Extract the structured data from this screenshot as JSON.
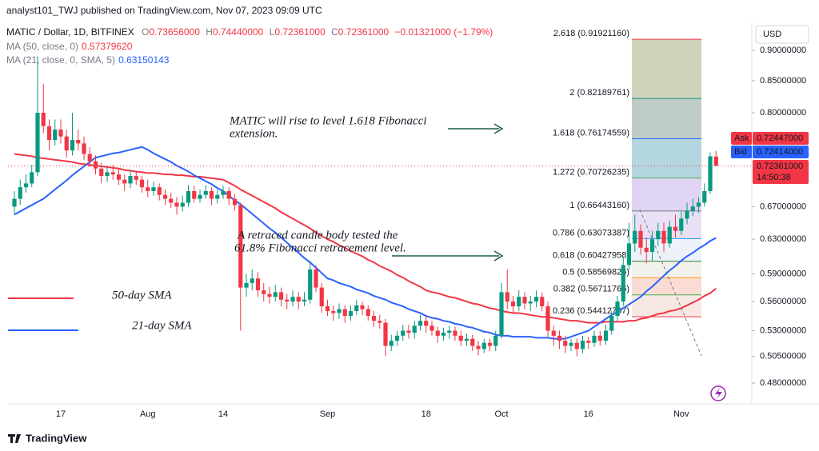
{
  "chart_data": {
    "type": "candlestick",
    "title": "analyst101_TWJ published on TradingView.com, Nov 07, 2023 09:09 UTC",
    "symbol": "MATIC / Dollar, 1D, BITFINEX",
    "ohlc_legend": [
      {
        "key": "O",
        "text": "0.73656000"
      },
      {
        "key": "H",
        "text": "0.74440000"
      },
      {
        "key": "L",
        "text": "0.72361000"
      },
      {
        "key": "C",
        "text": "0.72361000"
      }
    ],
    "change": "−0.01321000 (−1.79%)",
    "categories": [
      null,
      null,
      null,
      null,
      null,
      null,
      null,
      null,
      "17",
      null,
      null,
      null,
      null,
      null,
      null,
      null,
      null,
      null,
      null,
      null,
      null,
      null,
      null,
      "Aug",
      null,
      null,
      null,
      null,
      null,
      null,
      null,
      null,
      null,
      null,
      null,
      null,
      "14",
      null,
      null,
      null,
      null,
      null,
      null,
      null,
      null,
      null,
      null,
      null,
      null,
      null,
      null,
      null,
      null,
      null,
      "Sep",
      null,
      null,
      null,
      null,
      null,
      null,
      null,
      null,
      null,
      null,
      null,
      null,
      null,
      null,
      null,
      null,
      "18",
      null,
      null,
      null,
      null,
      null,
      null,
      null,
      null,
      null,
      null,
      null,
      null,
      "Oct",
      null,
      null,
      null,
      null,
      null,
      null,
      null,
      null,
      null,
      null,
      null,
      null,
      null,
      null,
      "16",
      null,
      null,
      null,
      null,
      null,
      null,
      null,
      null,
      null,
      null,
      null,
      null,
      null,
      null,
      null,
      "Nov",
      null,
      null,
      null,
      null,
      null,
      null
    ],
    "open": [
      0.67,
      0.68,
      0.695,
      0.7,
      0.715,
      0.8,
      0.78,
      0.76,
      0.775,
      0.765,
      0.745,
      0.76,
      0.755,
      0.74,
      0.73,
      0.72,
      0.71,
      0.715,
      0.712,
      0.705,
      0.7,
      0.71,
      0.705,
      0.695,
      0.69,
      0.695,
      0.685,
      0.68,
      0.675,
      0.67,
      0.675,
      0.69,
      0.68,
      0.685,
      0.69,
      0.68,
      0.685,
      0.69,
      0.68,
      0.672,
      0.575,
      0.58,
      0.585,
      0.572,
      0.568,
      0.565,
      0.57,
      0.562,
      0.56,
      0.565,
      0.56,
      0.562,
      0.595,
      0.575,
      0.555,
      0.55,
      0.548,
      0.552,
      0.545,
      0.55,
      0.556,
      0.552,
      0.545,
      0.54,
      0.538,
      0.515,
      0.52,
      0.525,
      0.53,
      0.528,
      0.535,
      0.54,
      0.535,
      0.53,
      0.525,
      0.528,
      0.53,
      0.525,
      0.52,
      0.522,
      0.515,
      0.512,
      0.518,
      0.515,
      0.525,
      0.57,
      0.56,
      0.555,
      0.565,
      0.558,
      0.56,
      0.565,
      0.555,
      0.53,
      0.525,
      0.52,
      0.515,
      0.518,
      0.512,
      0.52,
      0.518,
      0.525,
      0.52,
      0.53,
      0.545,
      0.56,
      0.6,
      0.625,
      0.64,
      0.62,
      0.615,
      0.63,
      0.64,
      0.625,
      0.645,
      0.64,
      0.655,
      0.665,
      0.67,
      0.675,
      0.69,
      0.73656
    ],
    "high": [
      0.69,
      0.705,
      0.712,
      0.725,
      0.89,
      0.845,
      0.79,
      0.79,
      0.79,
      0.775,
      0.8,
      0.775,
      0.765,
      0.75,
      0.738,
      0.728,
      0.722,
      0.725,
      0.72,
      0.712,
      0.718,
      0.716,
      0.71,
      0.705,
      0.702,
      0.7,
      0.692,
      0.688,
      0.682,
      0.684,
      0.698,
      0.697,
      0.692,
      0.698,
      0.695,
      0.692,
      0.697,
      0.695,
      0.686,
      0.675,
      0.59,
      0.595,
      0.592,
      0.58,
      0.576,
      0.578,
      0.575,
      0.568,
      0.572,
      0.57,
      0.57,
      0.605,
      0.6,
      0.58,
      0.562,
      0.556,
      0.558,
      0.556,
      0.556,
      0.562,
      0.56,
      0.556,
      0.55,
      0.546,
      0.542,
      0.526,
      0.53,
      0.536,
      0.536,
      0.54,
      0.546,
      0.545,
      0.54,
      0.534,
      0.533,
      0.535,
      0.534,
      0.53,
      0.527,
      0.526,
      0.52,
      0.522,
      0.522,
      0.53,
      0.58,
      0.595,
      0.566,
      0.572,
      0.57,
      0.566,
      0.572,
      0.57,
      0.56,
      0.535,
      0.53,
      0.525,
      0.522,
      0.522,
      0.525,
      0.524,
      0.53,
      0.53,
      0.536,
      0.55,
      0.566,
      0.61,
      0.65,
      0.66,
      0.648,
      0.632,
      0.64,
      0.65,
      0.65,
      0.652,
      0.66,
      0.665,
      0.675,
      0.68,
      0.682,
      0.7,
      0.742,
      0.7444
    ],
    "low": [
      0.66,
      0.672,
      0.688,
      0.695,
      0.71,
      0.77,
      0.745,
      0.752,
      0.755,
      0.735,
      0.738,
      0.745,
      0.732,
      0.722,
      0.712,
      0.7,
      0.702,
      0.705,
      0.698,
      0.69,
      0.694,
      0.698,
      0.688,
      0.682,
      0.684,
      0.678,
      0.672,
      0.668,
      0.66,
      0.664,
      0.67,
      0.675,
      0.675,
      0.68,
      0.672,
      0.674,
      0.68,
      0.672,
      0.665,
      0.53,
      0.565,
      0.572,
      0.565,
      0.56,
      0.558,
      0.56,
      0.555,
      0.552,
      0.555,
      0.552,
      0.555,
      0.558,
      0.57,
      0.548,
      0.545,
      0.54,
      0.542,
      0.538,
      0.54,
      0.546,
      0.546,
      0.54,
      0.534,
      0.532,
      0.505,
      0.51,
      0.515,
      0.52,
      0.522,
      0.522,
      0.53,
      0.528,
      0.525,
      0.518,
      0.52,
      0.522,
      0.52,
      0.515,
      0.515,
      0.51,
      0.506,
      0.508,
      0.51,
      0.51,
      0.522,
      0.552,
      0.548,
      0.55,
      0.552,
      0.55,
      0.554,
      0.55,
      0.524,
      0.515,
      0.512,
      0.508,
      0.51,
      0.505,
      0.508,
      0.512,
      0.514,
      0.515,
      0.516,
      0.526,
      0.54,
      0.555,
      0.595,
      0.615,
      0.612,
      0.602,
      0.605,
      0.622,
      0.615,
      0.62,
      0.632,
      0.635,
      0.648,
      0.658,
      0.662,
      0.67,
      0.686,
      0.72361
    ],
    "close": [
      0.68,
      0.695,
      0.7,
      0.715,
      0.8,
      0.78,
      0.76,
      0.775,
      0.765,
      0.745,
      0.76,
      0.755,
      0.74,
      0.73,
      0.72,
      0.71,
      0.715,
      0.712,
      0.705,
      0.7,
      0.71,
      0.705,
      0.695,
      0.69,
      0.695,
      0.685,
      0.68,
      0.675,
      0.67,
      0.675,
      0.69,
      0.68,
      0.685,
      0.69,
      0.68,
      0.685,
      0.69,
      0.68,
      0.672,
      0.575,
      0.58,
      0.585,
      0.572,
      0.568,
      0.565,
      0.57,
      0.562,
      0.56,
      0.565,
      0.56,
      0.562,
      0.595,
      0.575,
      0.555,
      0.55,
      0.548,
      0.552,
      0.545,
      0.55,
      0.556,
      0.552,
      0.545,
      0.54,
      0.538,
      0.515,
      0.52,
      0.525,
      0.53,
      0.528,
      0.535,
      0.54,
      0.535,
      0.53,
      0.525,
      0.528,
      0.53,
      0.525,
      0.52,
      0.522,
      0.515,
      0.512,
      0.518,
      0.515,
      0.525,
      0.57,
      0.56,
      0.555,
      0.565,
      0.558,
      0.56,
      0.565,
      0.555,
      0.53,
      0.525,
      0.52,
      0.515,
      0.518,
      0.512,
      0.52,
      0.518,
      0.525,
      0.52,
      0.53,
      0.545,
      0.56,
      0.6,
      0.625,
      0.64,
      0.62,
      0.615,
      0.63,
      0.64,
      0.625,
      0.645,
      0.64,
      0.655,
      0.665,
      0.67,
      0.675,
      0.69,
      0.73682,
      0.72361
    ],
    "up_color": "#089981",
    "down_color": "#f23645",
    "series": [
      {
        "name": "MA (50, close, 0)",
        "value_label": "0.57379620",
        "color": "#f23645",
        "values": [
          0.74,
          0.739,
          0.738,
          0.737,
          0.735,
          0.734,
          0.733,
          0.732,
          0.731,
          0.73,
          0.729,
          0.727,
          0.726,
          0.725,
          0.724,
          0.723,
          0.722,
          0.721,
          0.72,
          0.718,
          0.717,
          0.716,
          0.715,
          0.714,
          0.714,
          0.713,
          0.712,
          0.712,
          0.711,
          0.711,
          0.71,
          0.709,
          0.709,
          0.708,
          0.707,
          0.706,
          0.705,
          0.701,
          0.697,
          0.692,
          0.688,
          0.684,
          0.68,
          0.676,
          0.672,
          0.668,
          0.663,
          0.659,
          0.655,
          0.651,
          0.647,
          0.643,
          0.638,
          0.634,
          0.63,
          0.627,
          0.623,
          0.62,
          0.616,
          0.613,
          0.61,
          0.606,
          0.603,
          0.599,
          0.596,
          0.593,
          0.589,
          0.586,
          0.582,
          0.579,
          0.576,
          0.572,
          0.57,
          0.569,
          0.567,
          0.565,
          0.564,
          0.562,
          0.56,
          0.558,
          0.557,
          0.555,
          0.553,
          0.552,
          0.55,
          0.549,
          0.548,
          0.548,
          0.547,
          0.546,
          0.545,
          0.544,
          0.544,
          0.543,
          0.542,
          0.541,
          0.54,
          0.54,
          0.539,
          0.538,
          0.538,
          0.538,
          0.539,
          0.539,
          0.539,
          0.539,
          0.54,
          0.54,
          0.542,
          0.543,
          0.545,
          0.547,
          0.548,
          0.55,
          0.551,
          0.553,
          0.556,
          0.559,
          0.562,
          0.566,
          0.569,
          0.574
        ]
      },
      {
        "name": "MA (21, close, 0, SMA, 5)",
        "value_label": "0.63150143",
        "color": "#2962ff",
        "values": [
          0.66,
          0.664,
          0.668,
          0.672,
          0.676,
          0.68,
          0.686,
          0.692,
          0.698,
          0.704,
          0.711,
          0.717,
          0.723,
          0.729,
          0.735,
          0.737,
          0.739,
          0.741,
          0.742,
          0.744,
          0.746,
          0.748,
          0.75,
          0.746,
          0.741,
          0.737,
          0.733,
          0.729,
          0.724,
          0.72,
          0.716,
          0.711,
          0.707,
          0.703,
          0.699,
          0.694,
          0.69,
          0.684,
          0.678,
          0.673,
          0.667,
          0.661,
          0.655,
          0.649,
          0.643,
          0.638,
          0.632,
          0.626,
          0.62,
          0.614,
          0.608,
          0.603,
          0.597,
          0.591,
          0.585,
          0.583,
          0.58,
          0.578,
          0.576,
          0.573,
          0.571,
          0.569,
          0.566,
          0.564,
          0.562,
          0.559,
          0.557,
          0.555,
          0.552,
          0.55,
          0.548,
          0.545,
          0.543,
          0.542,
          0.54,
          0.539,
          0.537,
          0.536,
          0.534,
          0.533,
          0.531,
          0.529,
          0.528,
          0.526,
          0.525,
          0.525,
          0.524,
          0.524,
          0.524,
          0.524,
          0.523,
          0.523,
          0.523,
          0.522,
          0.522,
          0.522,
          0.524,
          0.526,
          0.528,
          0.53,
          0.534,
          0.538,
          0.542,
          0.546,
          0.549,
          0.553,
          0.557,
          0.561,
          0.565,
          0.571,
          0.576,
          0.582,
          0.588,
          0.594,
          0.599,
          0.605,
          0.61,
          0.614,
          0.619,
          0.623,
          0.628,
          0.6315
        ]
      }
    ],
    "ylim": [
      0.4616,
      0.949
    ],
    "log_scale": true,
    "grid": false,
    "yticks": [
      {
        "value": 0.9,
        "label": "0.90000000"
      },
      {
        "value": 0.85,
        "label": "0.85000000"
      },
      {
        "value": 0.8,
        "label": "0.80000000"
      },
      {
        "value": 0.67,
        "label": "0.67000000"
      },
      {
        "value": 0.63,
        "label": "0.63000000"
      },
      {
        "value": 0.59,
        "label": "0.59000000"
      },
      {
        "value": 0.56,
        "label": "0.56000000"
      },
      {
        "value": 0.53,
        "label": "0.53000000"
      },
      {
        "value": 0.505,
        "label": "0.50500000"
      },
      {
        "value": 0.48,
        "label": "0.48000000"
      }
    ],
    "y_axis_unit": "USD",
    "price_tags": [
      {
        "name": "Ask",
        "label": "0.72447000",
        "color": "#f23645"
      },
      {
        "name": "Bid",
        "label": "0.72414000",
        "color": "#2962ff"
      },
      {
        "label": "0.72361000",
        "countdown": "14:50:38",
        "color": "#f23645"
      }
    ],
    "fib_levels": [
      {
        "value": 0.9192116,
        "label": "2.618 (0.91921160)",
        "color": "#f23645",
        "band": "#c8caae"
      },
      {
        "value": 0.82189761,
        "label": "2 (0.82189761)",
        "color": "#089981",
        "band": "#b3c3bb"
      },
      {
        "value": 0.76174559,
        "label": "1.618 (0.76174559)",
        "color": "#2962ff",
        "band": "#a7cfd9"
      },
      {
        "value": 0.70726235,
        "label": "1.272 (0.70726235)",
        "color": "#4caf50",
        "band": "#d9cdf2"
      },
      {
        "value": 0.6644316,
        "label": "1 (0.66443160)",
        "color": "#787b86",
        "band": "#e5dbf4"
      },
      {
        "value": 0.63073387,
        "label": "0.786 (0.63073387)",
        "color": "#2196f3",
        "band": "#eaf0f8"
      },
      {
        "value": 0.60427958,
        "label": "0.618 (0.60427958)",
        "color": "#2e7d32",
        "band": "#f1efe9"
      },
      {
        "value": 0.58569826,
        "label": "0.5 (0.58569826)",
        "color": "#ff9800",
        "band": "#fad6cc"
      },
      {
        "value": 0.56711766,
        "label": "0.382 (0.56711766)",
        "color": "#4caf50",
        "band": "#f6e4de"
      },
      {
        "value": 0.54412787,
        "label": "0.236 (0.54412787)",
        "color": "#f23645"
      }
    ],
    "annotations": [
      {
        "lines": [
          "MATIC   will rise to level 1.618 Fibonacci",
          "extension."
        ]
      },
      {
        "lines": [
          "A retraced candle body tested the",
          "61.8% Fibonacci retracement level."
        ]
      }
    ],
    "sma_labels": [
      {
        "text": "50-day SMA",
        "color": "#f23645"
      },
      {
        "text": "21-day SMA",
        "color": "#2962ff"
      }
    ],
    "footer": "TradingView"
  }
}
